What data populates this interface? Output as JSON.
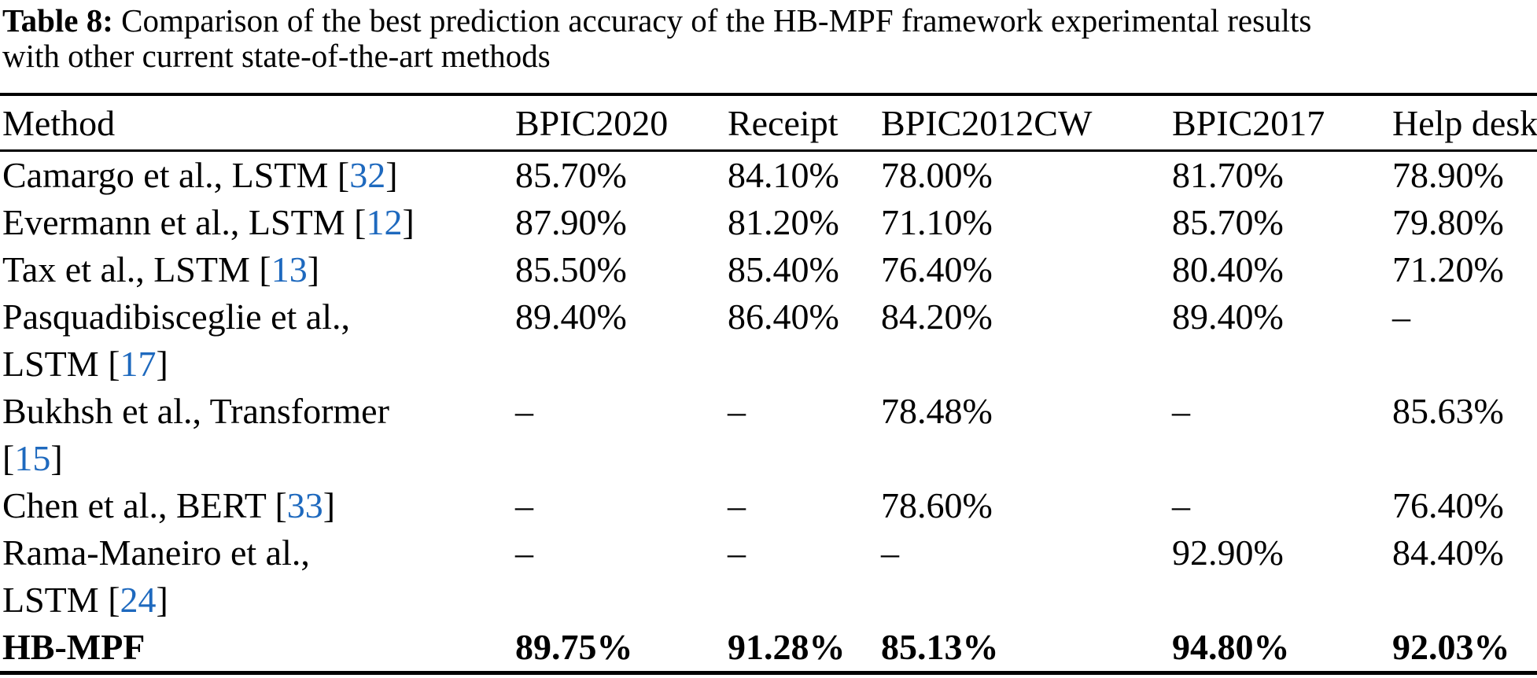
{
  "colors": {
    "citation_link": "#1e69be",
    "text": "#000000",
    "rule": "#000000",
    "background": "#ffffff"
  },
  "caption": {
    "label": "Table 8:",
    "line1_rest": " Comparison of the best prediction accuracy of the HB-MPF framework experimental results",
    "line2": "with other current state-of-the-art methods"
  },
  "table": {
    "columns": [
      "Method",
      "BPIC2020",
      "Receipt",
      "BPIC2012CW",
      "BPIC2017",
      "Help desk"
    ],
    "rows": [
      {
        "method": {
          "l1": "Camargo et al., LSTM ",
          "l1_open": "[",
          "l1_cite": "32",
          "l1_close": "]",
          "l2": "",
          "l2_open": "",
          "l2_cite": "",
          "l2_close": ""
        },
        "values": [
          "85.70%",
          "84.10%",
          "78.00%",
          "81.70%",
          "78.90%"
        ]
      },
      {
        "method": {
          "l1": "Evermann et al., LSTM ",
          "l1_open": "[",
          "l1_cite": "12",
          "l1_close": "]",
          "l2": "",
          "l2_open": "",
          "l2_cite": "",
          "l2_close": ""
        },
        "values": [
          "87.90%",
          "81.20%",
          "71.10%",
          "85.70%",
          "79.80%"
        ]
      },
      {
        "method": {
          "l1": "Tax et al., LSTM ",
          "l1_open": "[",
          "l1_cite": "13",
          "l1_close": "]",
          "l2": "",
          "l2_open": "",
          "l2_cite": "",
          "l2_close": ""
        },
        "values": [
          "85.50%",
          "85.40%",
          "76.40%",
          "80.40%",
          "71.20%"
        ]
      },
      {
        "method": {
          "l1": "Pasquadibisceglie et al.,",
          "l1_open": "",
          "l1_cite": "",
          "l1_close": "",
          "l2": "LSTM ",
          "l2_open": "[",
          "l2_cite": "17",
          "l2_close": "]"
        },
        "values": [
          "89.40%",
          "86.40%",
          "84.20%",
          "89.40%",
          "–"
        ]
      },
      {
        "method": {
          "l1": "Bukhsh et al., Transformer",
          "l1_open": "",
          "l1_cite": "",
          "l1_close": "",
          "l2": "",
          "l2_open": "[",
          "l2_cite": "15",
          "l2_close": "]"
        },
        "values": [
          "–",
          "–",
          "78.48%",
          "–",
          "85.63%"
        ]
      },
      {
        "method": {
          "l1": "Chen et al., BERT ",
          "l1_open": "[",
          "l1_cite": "33",
          "l1_close": "]",
          "l2": "",
          "l2_open": "",
          "l2_cite": "",
          "l2_close": ""
        },
        "values": [
          "–",
          "–",
          "78.60%",
          "–",
          "76.40%"
        ]
      },
      {
        "method": {
          "l1": "Rama-Maneiro et al.,",
          "l1_open": "",
          "l1_cite": "",
          "l1_close": "",
          "l2": "LSTM ",
          "l2_open": "[",
          "l2_cite": "24",
          "l2_close": "]"
        },
        "values": [
          "–",
          "–",
          "–",
          "92.90%",
          "84.40%"
        ]
      },
      {
        "method": {
          "l1": "HB-MPF",
          "l1_open": "",
          "l1_cite": "",
          "l1_close": "",
          "l2": "",
          "l2_open": "",
          "l2_cite": "",
          "l2_close": ""
        },
        "values": [
          "89.75%",
          "91.28%",
          "85.13%",
          "94.80%",
          "92.03%"
        ]
      }
    ]
  }
}
